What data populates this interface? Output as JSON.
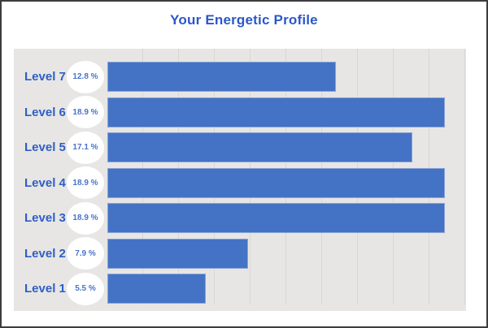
{
  "header": {
    "title": "Your Energetic Profile"
  },
  "colors": {
    "title": "#2b57c8",
    "label": "#2f5ec6",
    "percent_text": "#4a74ca",
    "bar": "#4472c4",
    "bar_border": "#8aa3d9",
    "panel_background": "#e7e6e4",
    "gridline": "#d8d7d4",
    "frame": "#3d3d3d",
    "badge_background": "#ffffff"
  },
  "chart_data": {
    "type": "bar",
    "orientation": "horizontal",
    "title": "Your Energetic Profile",
    "categories": [
      "Level 7",
      "Level 6",
      "Level 5",
      "Level 4",
      "Level 3",
      "Level 2",
      "Level 1"
    ],
    "values": [
      12.8,
      18.9,
      17.1,
      18.9,
      18.9,
      7.9,
      5.5
    ],
    "value_labels": [
      "12.8 %",
      "18.9 %",
      "17.1 %",
      "18.9 %",
      "18.9 %",
      "7.9 %",
      "5.5 %"
    ],
    "unit": "%",
    "xlim": [
      0,
      20
    ],
    "grid": true,
    "grid_step": 2,
    "legend": false,
    "axis_tick_labels_visible": false
  }
}
